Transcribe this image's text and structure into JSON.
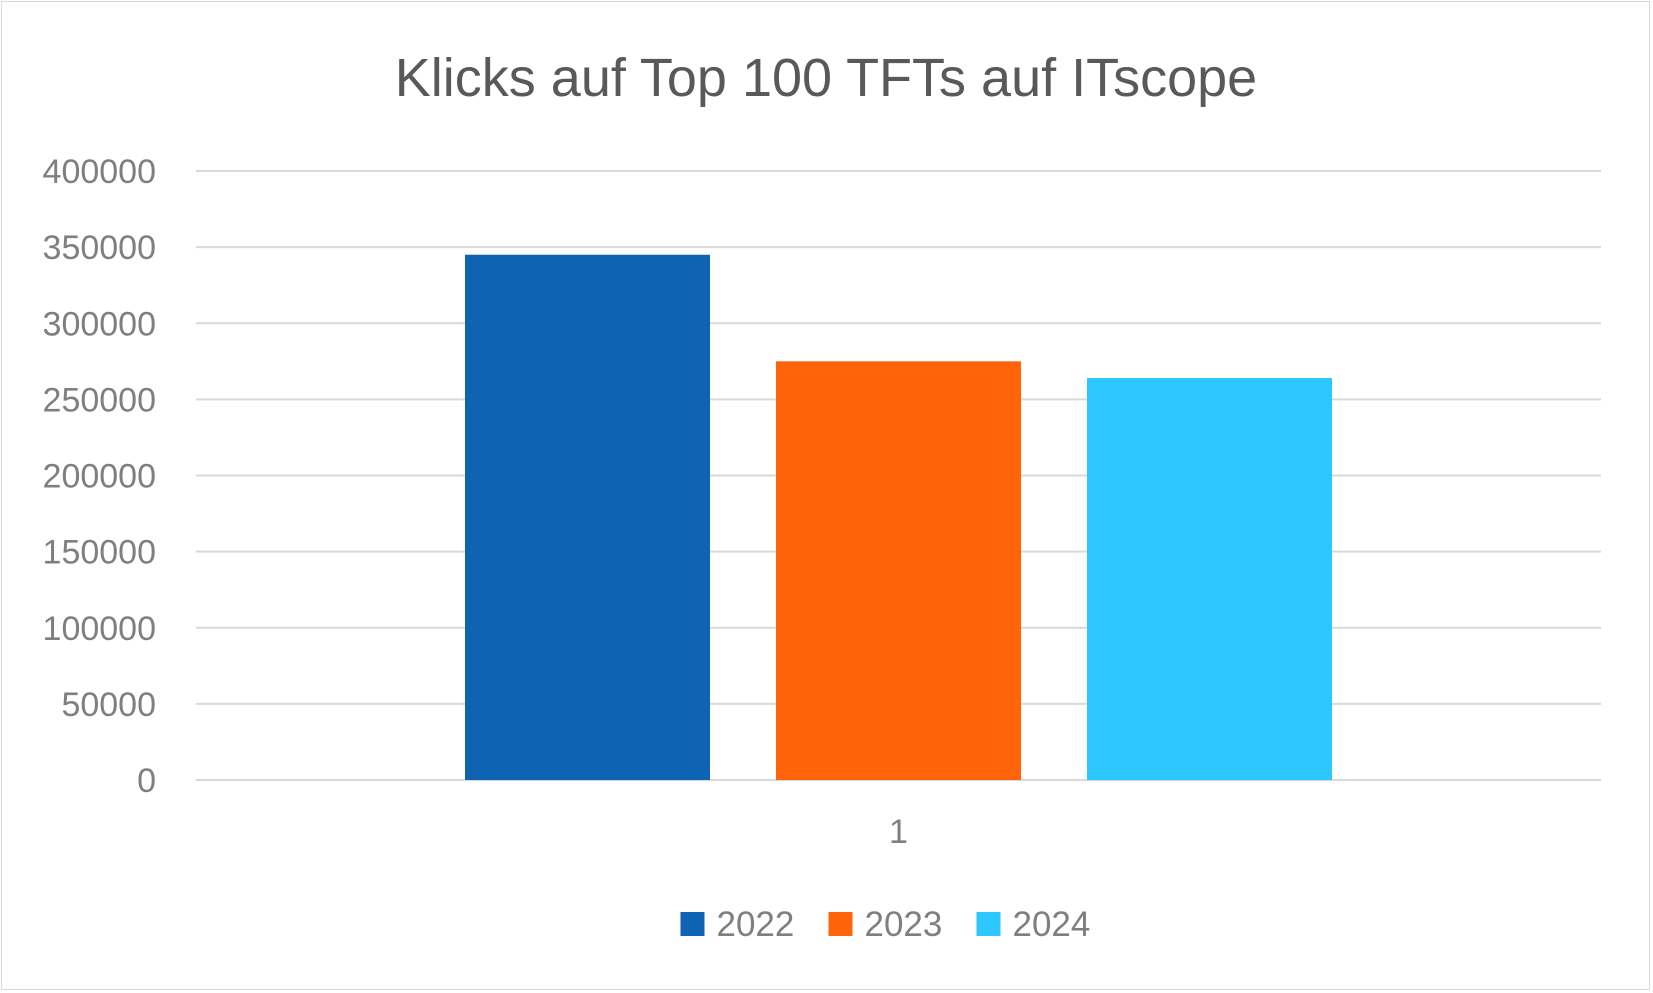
{
  "chart_data": {
    "type": "bar",
    "title": "Klicks auf Top 100 TFTs auf ITscope",
    "xlabel": "",
    "ylabel": "",
    "categories": [
      "1"
    ],
    "ylim": [
      0,
      400000
    ],
    "yticks": [
      "0",
      "50000",
      "100000",
      "150000",
      "200000",
      "250000",
      "300000",
      "350000",
      "400000"
    ],
    "grid": true,
    "legend_position": "bottom",
    "series": [
      {
        "name": "2022",
        "values": [
          345000
        ],
        "color": "#0f63b3"
      },
      {
        "name": "2023",
        "values": [
          275000
        ],
        "color": "#ff640a"
      },
      {
        "name": "2024",
        "values": [
          264000
        ],
        "color": "#2cc7ff"
      }
    ]
  }
}
